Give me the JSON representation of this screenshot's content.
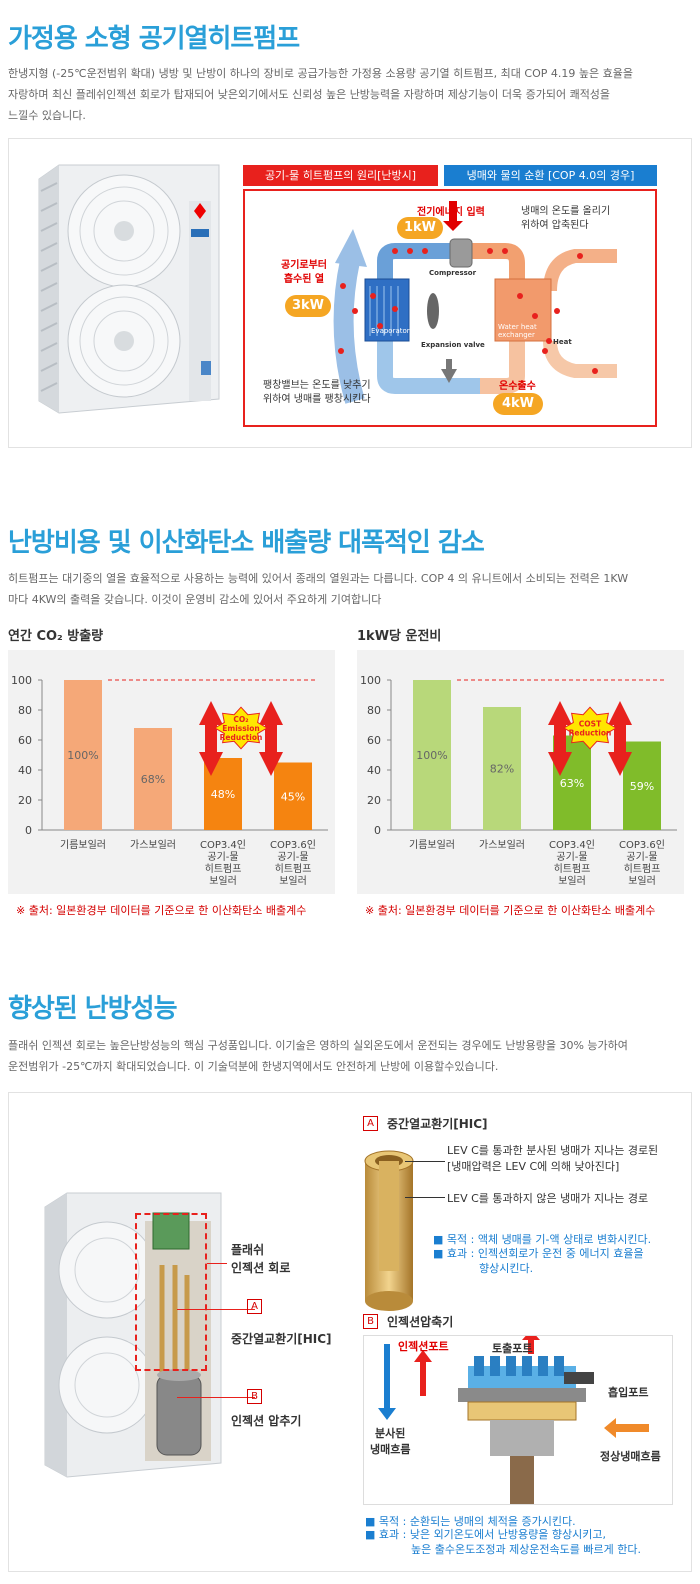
{
  "s1": {
    "title": "가정용 소형 공기열히트펌프",
    "p1": "한냉지형 (-25℃운전범위 확대) 냉방 및 난방이 하나의 장비로 공급가능한 가정용 소용량 공기열 히트펌프, 최대 COP 4.19 높은 효율을",
    "p2": "자랑하며 최신 플레쉬인젝션 회로가 탑재되어 낮은외기에서도 신뢰성 높은 난방능력을 자랑하며 제상기능이 더욱 증가되어 쾌적성을",
    "p3": "느낄수 있습니다.",
    "tab_red": "공기-물 히트펌프의 원리[난방시]",
    "tab_blue": "냉매와 물의 순환 [COP 4.0의 경우]",
    "elec": "전기에너지 입력",
    "kw1": "1kW",
    "compress1": "냉매의 온도를 올리기",
    "compress2": "위하여 압축된다",
    "air1": "공기로부터",
    "air2": "흡수된 열",
    "kw3": "3kW",
    "expand1": "팽창밸브는 온도를 낮추기",
    "expand2": "위하여 냉매를 팽창시킨다",
    "hot": "온수출수",
    "kw4": "4kW",
    "compressor": "Compressor",
    "evaporator": "Evaporator",
    "expansion": "Expansion valve",
    "whx1": "Water heat",
    "whx2": "exchanger",
    "heat": "Heat"
  },
  "s2": {
    "title": "난방비용 및 이산화탄소 배출량 대폭적인 감소",
    "p1": "히트펌프는 대기중의 열을 효율적으로 사용하는 능력에 있어서 종래의 열원과는 다릅니다. COP 4 의 유니트에서 소비되는 전력은 1KW",
    "p2": "마다 4KW의 출력을 갖습니다. 이것이 운영비 감소에 있어서 주요하게 기여합니다",
    "source": "※ 출처: 일본환경부 데이터를 기준으로 한 이산화탄소 배출계수"
  },
  "chart_data": [
    {
      "type": "bar",
      "title": "연간 CO₂ 방출량",
      "ylim": [
        0,
        100
      ],
      "yticks": [
        "0",
        "20",
        "40",
        "60",
        "80",
        "100"
      ],
      "categories": [
        [
          "기름보일러"
        ],
        [
          "가스보일러"
        ],
        [
          "COP3.4인",
          "공기-물",
          "히트펌프",
          "보일러"
        ],
        [
          "COP3.6인",
          "공기-물",
          "히트펌프",
          "보일러"
        ]
      ],
      "values": [
        100,
        68,
        48,
        45
      ],
      "labels": [
        "100%",
        "68%",
        "48%",
        "45%"
      ],
      "colors": [
        "#f5a878",
        "#f5a878",
        "#f58410",
        "#f58410"
      ],
      "badge": [
        "CO₂",
        "Emission",
        "Reduction"
      ]
    },
    {
      "type": "bar",
      "title": "1kW당 운전비",
      "ylim": [
        0,
        100
      ],
      "yticks": [
        "0",
        "20",
        "40",
        "60",
        "80",
        "100"
      ],
      "categories": [
        [
          "기름보일러"
        ],
        [
          "가스보일러"
        ],
        [
          "COP3.4인",
          "공기-물",
          "히트펌프",
          "보일러"
        ],
        [
          "COP3.6인",
          "공기-물",
          "히트펌프",
          "보일러"
        ]
      ],
      "values": [
        100,
        82,
        63,
        59
      ],
      "labels": [
        "100%",
        "82%",
        "63%",
        "59%"
      ],
      "colors": [
        "#b8d87a",
        "#b8d87a",
        "#80bc2a",
        "#80bc2a"
      ],
      "badge": [
        "COST",
        "Reduction"
      ]
    }
  ],
  "s3": {
    "title": "향상된 난방성능",
    "p1": "플래쉬 인젝션 회로는 높은난방성능의 핵심 구성품입니다. 이기술은 영하의 실외온도에서 운전되는 경우에도 난방용량을 30% 능가하여",
    "p2": "운전범위가 -25℃까지 확대되었습니다. 이 기술덕분에 한냉지역에서도 안전하게 난방에 이용할수있습니다.",
    "flash1": "플래쉬",
    "flash2": "인젝션 회로",
    "hic": "중간열교환기[HIC]",
    "injcomp": "인젝션 압추기",
    "a": "A",
    "b": "B",
    "hic_title": "중간열교환기[HIC]",
    "lev1": "LEV C를 통과한 분사된 냉매가 지나는 경로된",
    "lev2": "[냉매압력은 LEV C에 의해 낮아진다]",
    "lev3": "LEV C를 통과하지 않은 냉매가 지나는 경로",
    "purpose_a": "■ 목적 : 액체 냉매를 기-액 상태로 변화시킨다.",
    "effect_a1": "■ 효과 : 인젝션회로가 운전 중 에너지 효율을",
    "effect_a2": "향상시킨다.",
    "inj_title": "인젝션압축기",
    "inj_port": "인젝션포트",
    "discharge": "토출포트",
    "suction": "흡입포트",
    "spray1": "분사된",
    "spray2": "냉매흐름",
    "normal": "정상냉매흐름",
    "purpose_b": "■ 목적 : 순환되는 냉매의 체적을 증가시킨다.",
    "effect_b1": "■ 효과 : 낮은 외기온도에서 난방용량을 향상시키고,",
    "effect_b2": "높은 출수온도조정과 제상운전속도를 빠르게 한다."
  }
}
